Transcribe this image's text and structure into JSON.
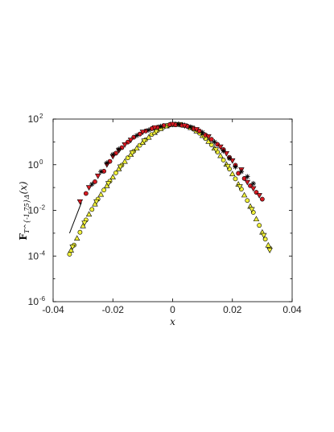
{
  "chart_data": {
    "type": "scatter",
    "title": "",
    "xlabel": "x",
    "ylabel": {
      "main": "F",
      "sub": "T^{-1.75}Δ",
      "arg": "(x)"
    },
    "xlim": [
      -0.04,
      0.04
    ],
    "ylim_log10": [
      -6,
      2
    ],
    "yscale": "log",
    "grid": false,
    "legend": "none",
    "x_ticks": [
      "-0.04",
      "-0.02",
      "0",
      "0.02",
      "0.04"
    ],
    "y_ticks": [
      {
        "base": "10",
        "exp": "-6"
      },
      {
        "base": "10",
        "exp": "-4"
      },
      {
        "base": "10",
        "exp": "-2"
      },
      {
        "base": "10",
        "exp": "0"
      },
      {
        "base": "10",
        "exp": "2"
      }
    ],
    "colors": {
      "red_markers": "#d81b23",
      "yellow_markers": "#f2f23a",
      "black_markers": "#000000",
      "edge": "#000000"
    },
    "reference_line": {
      "x": [
        -0.0345,
        -0.0305
      ],
      "y": [
        0.001,
        0.0224
      ]
    },
    "series": [
      {
        "marker": "circle",
        "color": "#d81b23",
        "points": [
          [
            -0.029,
            0.055
          ],
          [
            -0.026,
            0.18
          ],
          [
            -0.023,
            0.52
          ],
          [
            -0.021,
            1.4
          ],
          [
            -0.019,
            3.2
          ],
          [
            -0.017,
            5.6
          ],
          [
            -0.015,
            9.8
          ],
          [
            -0.013,
            16
          ],
          [
            -0.011,
            22
          ],
          [
            -0.009,
            30
          ],
          [
            -0.007,
            38
          ],
          [
            -0.005,
            44
          ],
          [
            -0.003,
            52
          ],
          [
            -0.001,
            57
          ],
          [
            0.001,
            56
          ],
          [
            0.003,
            54
          ],
          [
            0.005,
            48
          ],
          [
            0.007,
            39
          ],
          [
            0.009,
            30
          ],
          [
            0.011,
            20
          ],
          [
            0.013,
            13
          ],
          [
            0.015,
            7.8
          ],
          [
            0.017,
            4.6
          ],
          [
            0.019,
            2.1
          ],
          [
            0.021,
            0.95
          ],
          [
            0.022,
            0.42
          ],
          [
            0.024,
            0.25
          ],
          [
            0.026,
            0.12
          ],
          [
            0.028,
            0.062
          ],
          [
            0.03,
            0.031
          ]
        ]
      },
      {
        "marker": "triangle-down",
        "color": "#d81b23",
        "points": [
          [
            -0.031,
            0.024
          ],
          [
            -0.028,
            0.1
          ],
          [
            -0.025,
            0.32
          ],
          [
            -0.022,
            1.0
          ],
          [
            -0.02,
            2.3
          ],
          [
            -0.018,
            4.2
          ],
          [
            -0.016,
            7.5
          ],
          [
            -0.014,
            12
          ],
          [
            -0.01,
            27
          ],
          [
            -0.006,
            42
          ],
          [
            0.0,
            59
          ],
          [
            0.004,
            51
          ],
          [
            0.008,
            35
          ],
          [
            0.012,
            17
          ],
          [
            0.016,
            6.0
          ],
          [
            0.018,
            3.1
          ],
          [
            0.02,
            1.5
          ],
          [
            0.023,
            0.6
          ],
          [
            0.025,
            0.17
          ],
          [
            0.027,
            0.09
          ],
          [
            0.029,
            0.045
          ]
        ]
      },
      {
        "marker": "star",
        "color": "#000000",
        "points": [
          [
            -0.027,
            0.14
          ],
          [
            -0.024,
            0.5
          ],
          [
            -0.022,
            1.2
          ],
          [
            -0.02,
            2.8
          ],
          [
            -0.018,
            4.8
          ],
          [
            -0.012,
            19
          ],
          [
            -0.008,
            33
          ],
          [
            -0.004,
            48
          ],
          [
            0.002,
            58
          ],
          [
            0.006,
            45
          ],
          [
            0.01,
            26
          ],
          [
            0.014,
            10
          ],
          [
            0.017,
            4.0
          ],
          [
            0.019,
            1.9
          ],
          [
            0.021,
            0.8
          ],
          [
            0.023,
            0.5
          ],
          [
            0.025,
            0.3
          ],
          [
            0.027,
            0.15
          ]
        ]
      },
      {
        "marker": "circle",
        "color": "#f2f23a",
        "points": [
          [
            -0.0345,
            0.00012
          ],
          [
            -0.033,
            0.0003
          ],
          [
            -0.031,
            0.0011
          ],
          [
            -0.029,
            0.0038
          ],
          [
            -0.027,
            0.011
          ],
          [
            -0.025,
            0.031
          ],
          [
            -0.023,
            0.078
          ],
          [
            -0.021,
            0.19
          ],
          [
            -0.019,
            0.44
          ],
          [
            -0.017,
            0.95
          ],
          [
            -0.015,
            2.0
          ],
          [
            -0.013,
            3.9
          ],
          [
            -0.011,
            7.1
          ],
          [
            -0.009,
            12.5
          ],
          [
            -0.007,
            21
          ],
          [
            -0.005,
            32
          ],
          [
            -0.003,
            45
          ],
          [
            -0.001,
            55
          ],
          [
            0.001,
            60
          ],
          [
            0.003,
            57
          ],
          [
            0.005,
            48
          ],
          [
            0.007,
            36
          ],
          [
            0.009,
            24
          ],
          [
            0.011,
            14
          ],
          [
            0.013,
            7.5
          ],
          [
            0.015,
            3.6
          ],
          [
            0.017,
            1.6
          ],
          [
            0.019,
            0.65
          ],
          [
            0.021,
            0.24
          ],
          [
            0.023,
            0.085
          ],
          [
            0.025,
            0.027
          ],
          [
            0.027,
            0.0082
          ],
          [
            0.029,
            0.0022
          ],
          [
            0.031,
            0.00055
          ],
          [
            0.0325,
            0.00022
          ]
        ]
      },
      {
        "marker": "triangle-up",
        "color": "#f2f23a",
        "points": [
          [
            -0.034,
            0.00018
          ],
          [
            -0.032,
            0.0006
          ],
          [
            -0.03,
            0.0021
          ],
          [
            -0.028,
            0.0068
          ],
          [
            -0.026,
            0.019
          ],
          [
            -0.024,
            0.05
          ],
          [
            -0.022,
            0.12
          ],
          [
            -0.02,
            0.29
          ],
          [
            -0.018,
            0.66
          ],
          [
            -0.016,
            1.4
          ],
          [
            -0.014,
            2.8
          ],
          [
            -0.012,
            5.3
          ],
          [
            -0.01,
            9.5
          ],
          [
            -0.008,
            16
          ],
          [
            -0.006,
            26
          ],
          [
            -0.004,
            38
          ],
          [
            -0.002,
            50
          ],
          [
            0.0,
            58
          ],
          [
            0.002,
            59
          ],
          [
            0.004,
            53
          ],
          [
            0.006,
            42
          ],
          [
            0.008,
            30
          ],
          [
            0.01,
            19
          ],
          [
            0.012,
            10.5
          ],
          [
            0.014,
            5.3
          ],
          [
            0.016,
            2.5
          ],
          [
            0.018,
            1.05
          ],
          [
            0.02,
            0.4
          ],
          [
            0.022,
            0.14
          ],
          [
            0.024,
            0.047
          ],
          [
            0.026,
            0.015
          ],
          [
            0.028,
            0.0042
          ],
          [
            0.03,
            0.0011
          ],
          [
            0.032,
            0.0003
          ]
        ]
      },
      {
        "marker": "triangle-down",
        "color": "#f2f23a",
        "points": [
          [
            -0.0335,
            0.00025
          ],
          [
            -0.0295,
            0.0028
          ],
          [
            -0.0255,
            0.024
          ],
          [
            -0.0215,
            0.15
          ],
          [
            -0.0175,
            0.8
          ],
          [
            -0.0135,
            3.3
          ],
          [
            -0.0095,
            11
          ],
          [
            -0.0055,
            28
          ],
          [
            -0.0015,
            52
          ],
          [
            0.0025,
            58
          ],
          [
            0.0065,
            40
          ],
          [
            0.0105,
            17
          ],
          [
            0.0145,
            4.5
          ],
          [
            0.0185,
            0.85
          ],
          [
            0.0225,
            0.11
          ],
          [
            0.0265,
            0.011
          ],
          [
            0.0305,
            0.0008
          ],
          [
            0.0325,
            0.00018
          ]
        ]
      }
    ]
  }
}
